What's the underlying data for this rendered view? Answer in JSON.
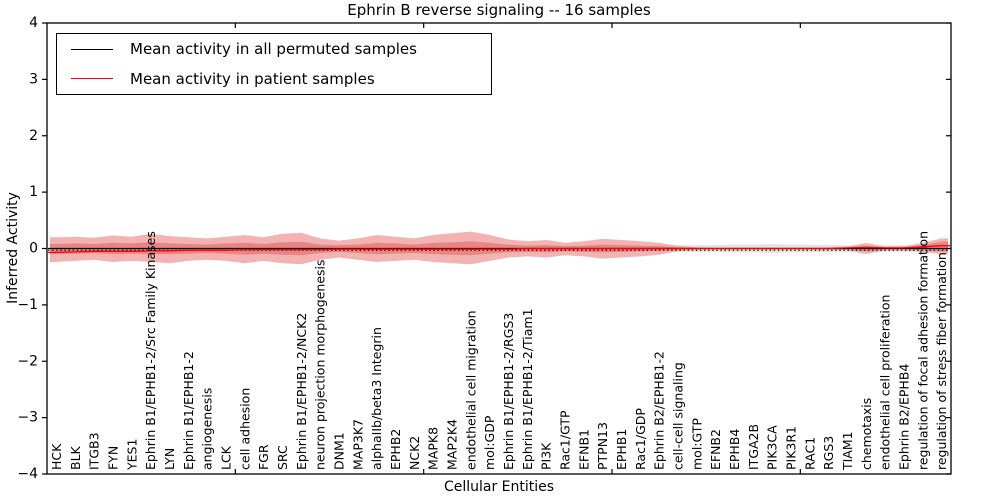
{
  "figure": {
    "title": "Ephrin B reverse signaling -- 16 samples",
    "background": "#ffffff"
  },
  "legend": {
    "position": "upper left",
    "items": [
      {
        "label": "Mean activity in all permuted samples",
        "color": "#000000"
      },
      {
        "label": "Mean activity in patient samples",
        "color": "#ff0000"
      }
    ]
  },
  "chart_data": {
    "type": "line",
    "title": "Ephrin B reverse signaling -- 16 samples",
    "xlabel": "Cellular Entities",
    "ylabel": "Inferred Activity",
    "ylim": [
      -4,
      4
    ],
    "ytick_values": [
      4,
      3,
      2,
      1,
      0,
      -1,
      -2,
      -3,
      -4
    ],
    "ytick_labels": [
      "4",
      "3",
      "2",
      "1",
      "0",
      "−1",
      "−2",
      "−3",
      "−4"
    ],
    "xtick_values": [
      10,
      20,
      30,
      40
    ],
    "grid": false,
    "legend_position": "upper left",
    "categories": [
      "HCK",
      "BLK",
      "ITGB3",
      "FYN",
      "YES1",
      "Ephrin B1/EPHB1-2/Src Family Kinases",
      "LYN",
      "Ephrin B1/EPHB1-2",
      "angiogenesis",
      "LCK",
      "cell adhesion",
      "FGR",
      "SRC",
      "Ephrin B1/EPHB1-2/NCK2",
      "neuron projection morphogenesis",
      "DNM1",
      "MAP3K7",
      "alphaIIb/beta3 Integrin",
      "EPHB2",
      "NCK2",
      "MAPK8",
      "MAP2K4",
      "endothelial cell migration",
      "mol:GDP",
      "Ephrin B1/EPHB1-2/RGS3",
      "Ephrin B1/EPHB1-2/Tiam1",
      "PI3K",
      "Rac1/GTP",
      "EFNB1",
      "PTPN13",
      "EPHB1",
      "Rac1/GDP",
      "Ephrin B2/EPHB1-2",
      "cell-cell signaling",
      "mol:GTP",
      "EFNB2",
      "EPHB4",
      "ITGA2B",
      "PIK3CA",
      "PIK3R1",
      "RAC1",
      "RGS3",
      "TIAM1",
      "chemotaxis",
      "endothelial cell proliferation",
      "Ephrin B2/EPHB4",
      "regulation of focal adhesion formation",
      "regulation of stress fiber formation"
    ],
    "series": [
      {
        "name": "Mean activity in all permuted samples",
        "color": "#000000",
        "style": "solid",
        "width": 1.3,
        "values": [
          0,
          0,
          0,
          0,
          0,
          0,
          0,
          0,
          0,
          0,
          0,
          0,
          0,
          0,
          0,
          0,
          0,
          0,
          0,
          0,
          0,
          0,
          0,
          0,
          0,
          0,
          0,
          0,
          0,
          0,
          0,
          0,
          0,
          0,
          0,
          0,
          0,
          0,
          0,
          0,
          0,
          0,
          0,
          0,
          0,
          0,
          0,
          0
        ]
      },
      {
        "name": "permuted-baseline-dotted",
        "color": "#000000",
        "style": "dotted",
        "width": 1.2,
        "values": [
          -0.03,
          -0.03,
          -0.03,
          -0.03,
          -0.03,
          -0.03,
          -0.03,
          -0.03,
          -0.03,
          -0.03,
          -0.03,
          -0.03,
          -0.03,
          -0.03,
          -0.03,
          -0.03,
          -0.03,
          -0.03,
          -0.03,
          -0.03,
          -0.03,
          -0.03,
          -0.03,
          -0.03,
          -0.03,
          -0.03,
          -0.03,
          -0.03,
          -0.03,
          -0.03,
          -0.03,
          -0.03,
          -0.03,
          -0.03,
          -0.03,
          -0.03,
          -0.03,
          -0.03,
          -0.03,
          -0.03,
          -0.03,
          -0.03,
          -0.03,
          -0.03,
          -0.03,
          -0.03,
          -0.03,
          -0.03
        ]
      },
      {
        "name": "Mean activity in patient samples",
        "color": "#ff0000",
        "style": "solid",
        "width": 1.3,
        "values": [
          -0.07,
          -0.06,
          -0.05,
          -0.05,
          -0.05,
          -0.04,
          -0.04,
          -0.03,
          -0.03,
          -0.03,
          -0.02,
          -0.02,
          -0.02,
          -0.02,
          -0.02,
          -0.01,
          -0.01,
          -0.01,
          -0.01,
          -0.01,
          -0.01,
          -0.01,
          -0.01,
          -0.01,
          -0.01,
          0,
          0,
          0,
          0,
          0,
          0,
          0,
          0,
          0,
          0,
          0,
          0,
          0,
          0,
          0,
          0,
          0,
          0.01,
          0.02,
          0.01,
          0.01,
          0.03,
          0.05
        ]
      }
    ],
    "bands": [
      {
        "name": "permuted-samples-range",
        "color": "#c8c8c8",
        "opacity": 0.5,
        "upper": [
          0.06,
          0.06,
          0.07,
          0.07,
          0.06,
          0.07,
          0.07,
          0.06,
          0.06,
          0.07,
          0.07,
          0.06,
          0.07,
          0.07,
          0.06,
          0.06,
          0.07,
          0.07,
          0.06,
          0.06,
          0.07,
          0.07,
          0.07,
          0.06,
          0.06,
          0.06,
          0.07,
          0.06,
          0.06,
          0.07,
          0.06,
          0.06,
          0.06,
          0.06,
          0.06,
          0.06,
          0.07,
          0.07,
          0.08,
          0.07,
          0.07,
          0.06,
          0.06,
          0.06,
          0.06,
          0.06,
          0.06,
          0.06
        ],
        "lower": [
          -0.06,
          -0.06,
          -0.07,
          -0.07,
          -0.06,
          -0.07,
          -0.07,
          -0.06,
          -0.06,
          -0.07,
          -0.07,
          -0.06,
          -0.07,
          -0.07,
          -0.06,
          -0.06,
          -0.07,
          -0.07,
          -0.06,
          -0.06,
          -0.07,
          -0.07,
          -0.07,
          -0.06,
          -0.06,
          -0.06,
          -0.07,
          -0.06,
          -0.06,
          -0.07,
          -0.06,
          -0.06,
          -0.06,
          -0.06,
          -0.06,
          -0.06,
          -0.07,
          -0.07,
          -0.08,
          -0.07,
          -0.07,
          -0.06,
          -0.06,
          -0.06,
          -0.06,
          -0.06,
          -0.06,
          -0.06
        ]
      },
      {
        "name": "patient-samples-range-outer",
        "color": "#f0a0a0",
        "opacity": 0.8,
        "upper": [
          0.2,
          0.21,
          0.19,
          0.23,
          0.21,
          0.26,
          0.22,
          0.2,
          0.18,
          0.21,
          0.24,
          0.2,
          0.26,
          0.28,
          0.18,
          0.14,
          0.18,
          0.24,
          0.21,
          0.18,
          0.24,
          0.27,
          0.3,
          0.24,
          0.16,
          0.13,
          0.15,
          0.1,
          0.13,
          0.17,
          0.15,
          0.13,
          0.1,
          0.05,
          0.02,
          0.015,
          0.015,
          0.015,
          0.015,
          0.015,
          0.015,
          0.02,
          0.03,
          0.1,
          0.03,
          0.04,
          0.1,
          0.18
        ],
        "lower": [
          -0.24,
          -0.22,
          -0.2,
          -0.24,
          -0.22,
          -0.24,
          -0.26,
          -0.22,
          -0.2,
          -0.22,
          -0.26,
          -0.22,
          -0.26,
          -0.28,
          -0.2,
          -0.16,
          -0.2,
          -0.24,
          -0.22,
          -0.2,
          -0.24,
          -0.26,
          -0.28,
          -0.22,
          -0.16,
          -0.14,
          -0.16,
          -0.12,
          -0.14,
          -0.18,
          -0.16,
          -0.14,
          -0.11,
          -0.05,
          -0.02,
          -0.015,
          -0.015,
          -0.015,
          -0.015,
          -0.015,
          -0.015,
          -0.02,
          -0.03,
          -0.1,
          -0.03,
          -0.03,
          -0.06,
          -0.1
        ]
      },
      {
        "name": "patient-samples-range-inner",
        "color": "#e57d7d",
        "opacity": 0.85,
        "upper": [
          0.08,
          0.09,
          0.08,
          0.1,
          0.09,
          0.11,
          0.09,
          0.08,
          0.07,
          0.09,
          0.1,
          0.08,
          0.11,
          0.12,
          0.07,
          0.06,
          0.07,
          0.1,
          0.09,
          0.07,
          0.1,
          0.11,
          0.13,
          0.1,
          0.07,
          0.05,
          0.06,
          0.04,
          0.05,
          0.07,
          0.06,
          0.05,
          0.04,
          0.02,
          0.01,
          0.008,
          0.008,
          0.008,
          0.008,
          0.008,
          0.008,
          0.01,
          0.015,
          0.05,
          0.015,
          0.02,
          0.06,
          0.12
        ],
        "lower": [
          -0.1,
          -0.09,
          -0.08,
          -0.1,
          -0.09,
          -0.1,
          -0.1,
          -0.09,
          -0.08,
          -0.09,
          -0.11,
          -0.09,
          -0.11,
          -0.12,
          -0.08,
          -0.06,
          -0.08,
          -0.1,
          -0.09,
          -0.08,
          -0.1,
          -0.11,
          -0.12,
          -0.09,
          -0.07,
          -0.06,
          -0.07,
          -0.05,
          -0.06,
          -0.07,
          -0.06,
          -0.05,
          -0.04,
          -0.02,
          -0.01,
          -0.008,
          -0.008,
          -0.008,
          -0.008,
          -0.008,
          -0.008,
          -0.01,
          -0.015,
          -0.05,
          -0.015,
          -0.015,
          -0.03,
          -0.05
        ]
      }
    ]
  }
}
